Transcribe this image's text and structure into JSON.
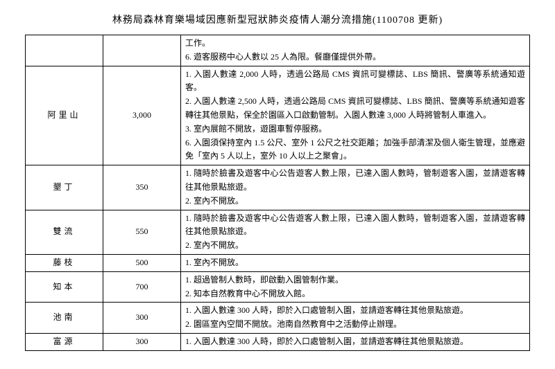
{
  "title": "林務局森林育樂場域因應新型冠狀肺炎疫情人潮分流措施(1100708 更新)",
  "rows": [
    {
      "name": "",
      "num": "",
      "desc": "工作。\n6. 遊客服務中心人數以 25 人為限。餐廳僅提供外帶。"
    },
    {
      "name": "阿里山",
      "num": "3,000",
      "desc": "1. 入園人數達 2,000 人時，透過公路局 CMS 資訊可變標誌、LBS 簡訊、警廣等系統通知遊客。\n2. 入園人數達 2,500 人時，透過公路局 CMS 資訊可變標誌、LBS 簡訊、警廣等系統通知遊客轉往其他景點，保全於園區入口啟動管制。入園人數達 3,000 人時將管制人車進入。\n3. 室內展館不開放，遊園車暫停服務。\n6. 入園須保持室內 1.5 公尺、室外 1 公尺之社交距離；加強手部清潔及個人衛生管理，並應避免「室內 5 人以上，室外 10 人以上之聚會」。"
    },
    {
      "name": "墾丁",
      "num": "350",
      "desc": "1. 隨時於臉書及遊客中心公告遊客人數上限，已達入園人數時，管制遊客入園，並請遊客轉往其他景點旅遊。\n2. 室內不開放。"
    },
    {
      "name": "雙流",
      "num": "550",
      "desc": "1. 隨時於臉書及遊客中心公告遊客人數上限，已達入園人數時，管制遊客入園，並請遊客轉往其他景點旅遊。\n2. 室內不開放。"
    },
    {
      "name": "藤枝",
      "num": "500",
      "desc": "1. 室內不開放。"
    },
    {
      "name": "知本",
      "num": "700",
      "desc": "1. 超過管制人數時，即啟動入園管制作業。\n2. 知本自然教育中心不開放入館。"
    },
    {
      "name": "池南",
      "num": "300",
      "desc": "1. 入園人數達 300 人時，即於入口處管制入園，並請遊客轉往其他景點旅遊。\n2. 園區室內空間不開放。池南自然教育中之活動停止辦理。"
    },
    {
      "name": "富源",
      "num": "300",
      "desc": "1. 入園人數達 300 人時，即於入口處管制入園，並請遊客轉往其他景點旅遊。"
    }
  ]
}
